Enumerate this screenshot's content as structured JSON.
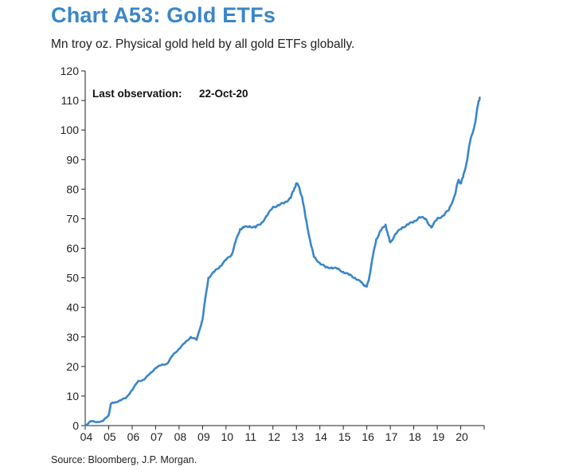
{
  "title": "Chart A53: Gold ETFs",
  "subtitle": "Mn troy oz. Physical gold held by all gold ETFs globally.",
  "source": "Source: Bloomberg, J.P. Morgan.",
  "colors": {
    "title": "#3a86c8",
    "line": "#3a86c8",
    "axis": "#222222"
  },
  "chart_data": {
    "type": "line",
    "title": "Chart A53: Gold ETFs",
    "subtitle": "Mn troy oz. Physical gold held by all gold ETFs globally.",
    "annotation": {
      "label": "Last observation:",
      "value": "22-Oct-20"
    },
    "xlabel": "",
    "ylabel": "",
    "ylim": [
      0,
      120
    ],
    "yticks": [
      0,
      10,
      20,
      30,
      40,
      50,
      60,
      70,
      80,
      90,
      100,
      110,
      120
    ],
    "xticks": [
      "04",
      "05",
      "06",
      "07",
      "08",
      "09",
      "10",
      "11",
      "12",
      "13",
      "14",
      "15",
      "16",
      "17",
      "18",
      "19",
      "20"
    ],
    "grid": false,
    "legend": "none",
    "series": [
      {
        "x": [
          2004.0,
          2004.25,
          2004.5,
          2004.75,
          2005.0,
          2005.1,
          2005.25,
          2005.5,
          2005.75,
          2006.0,
          2006.25,
          2006.5,
          2006.75,
          2007.0,
          2007.25,
          2007.5,
          2007.75,
          2008.0,
          2008.25,
          2008.5,
          2008.75,
          2009.0,
          2009.1,
          2009.25,
          2009.5,
          2009.75,
          2010.0,
          2010.25,
          2010.4,
          2010.6,
          2010.75,
          2011.0,
          2011.25,
          2011.5,
          2011.75,
          2012.0,
          2012.25,
          2012.5,
          2012.75,
          2012.9,
          2013.0,
          2013.1,
          2013.25,
          2013.4,
          2013.6,
          2013.75,
          2014.0,
          2014.25,
          2014.5,
          2014.75,
          2015.0,
          2015.25,
          2015.5,
          2015.75,
          2015.9,
          2016.0,
          2016.1,
          2016.25,
          2016.4,
          2016.6,
          2016.8,
          2016.9,
          2017.0,
          2017.25,
          2017.5,
          2017.75,
          2018.0,
          2018.25,
          2018.5,
          2018.75,
          2019.0,
          2019.25,
          2019.5,
          2019.75,
          2019.9,
          2020.0,
          2020.1,
          2020.25,
          2020.4,
          2020.6,
          2020.75,
          2020.81
        ],
        "y": [
          0,
          1.5,
          1.2,
          1.5,
          3.5,
          7.5,
          7.8,
          8.5,
          9.5,
          12,
          15,
          15.5,
          17.5,
          19.5,
          20.5,
          21,
          24,
          26,
          28,
          30,
          29,
          36,
          42,
          50,
          52,
          54,
          56,
          58,
          62,
          66.5,
          67,
          67.5,
          67,
          68.5,
          71,
          74,
          74.5,
          75.5,
          77,
          80,
          82,
          81,
          77,
          70,
          62,
          57,
          55,
          53.5,
          53.5,
          53,
          52,
          51,
          50,
          48.5,
          47.5,
          47,
          50,
          57,
          63,
          66,
          68,
          64.5,
          62,
          65,
          67,
          68,
          69,
          70.5,
          70,
          67,
          70,
          71,
          73,
          78,
          83,
          82,
          84,
          89,
          96,
          102,
          109,
          111
        ]
      }
    ]
  }
}
